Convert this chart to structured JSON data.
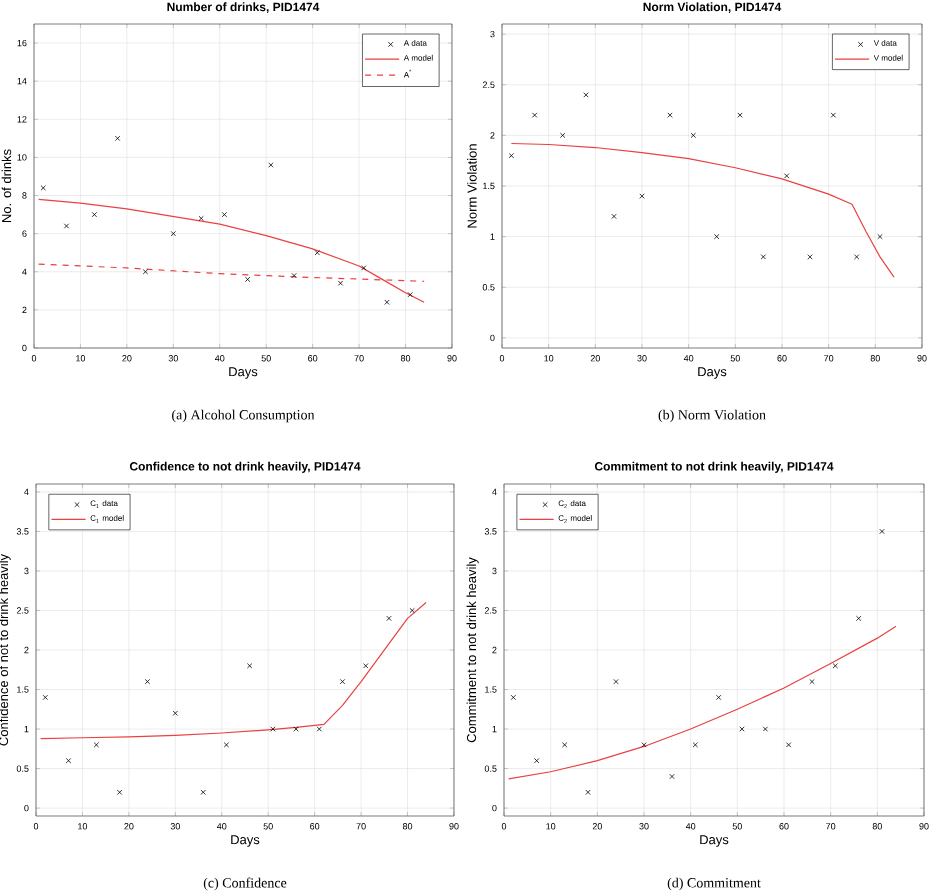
{
  "chart_data": [
    {
      "type": "scatter",
      "title": "Number of drinks, PID1474",
      "xlabel": "Days",
      "ylabel": "No. of drinks",
      "xlim": [
        0,
        90
      ],
      "xticks": [
        0,
        10,
        20,
        30,
        40,
        50,
        60,
        70,
        80,
        90
      ],
      "ylim": [
        0,
        17
      ],
      "yticks": [
        0,
        2,
        4,
        6,
        8,
        10,
        12,
        14,
        16
      ],
      "grid": true,
      "legend": "top right",
      "annotations": [
        "(a) Alcohol Consumption"
      ],
      "series": [
        {
          "name": "A data",
          "type": "scatter",
          "marker": "cross",
          "color": "#000000",
          "x": [
            2,
            7,
            13,
            18,
            24,
            30,
            36,
            41,
            46,
            51,
            56,
            61,
            66,
            71,
            76,
            81
          ],
          "values": [
            8.4,
            6.4,
            7.0,
            11.0,
            4.0,
            6.0,
            6.8,
            7.0,
            3.6,
            9.6,
            3.8,
            5.0,
            3.4,
            4.2,
            2.4,
            2.8
          ]
        },
        {
          "name": "A model",
          "type": "line",
          "line_style": "solid",
          "color": "#e8413f",
          "x": [
            1,
            10,
            20,
            30,
            40,
            50,
            60,
            70,
            75,
            80,
            84
          ],
          "values": [
            7.8,
            7.6,
            7.3,
            6.9,
            6.5,
            5.9,
            5.2,
            4.3,
            3.6,
            2.9,
            2.4
          ]
        },
        {
          "name": "A$^{*}$",
          "type": "line",
          "line_style": "dashed",
          "color": "#e8413f",
          "x": [
            1,
            20,
            40,
            60,
            84
          ],
          "values": [
            4.4,
            4.2,
            3.9,
            3.7,
            3.5
          ]
        }
      ]
    },
    {
      "type": "scatter",
      "title": "Norm Violation, PID1474",
      "xlabel": "Days",
      "ylabel": "Norm Violation",
      "xlim": [
        0,
        90
      ],
      "xticks": [
        0,
        10,
        20,
        30,
        40,
        50,
        60,
        70,
        80,
        90
      ],
      "ylim": [
        -0.1,
        3.1
      ],
      "yticks": [
        0,
        0.5,
        1,
        1.5,
        2,
        2.5,
        3
      ],
      "grid": true,
      "legend": "top right",
      "annotations": [
        "(b) Norm Violation"
      ],
      "series": [
        {
          "name": "V data",
          "type": "scatter",
          "marker": "cross",
          "color": "#000000",
          "x": [
            2,
            7,
            13,
            18,
            24,
            30,
            36,
            41,
            46,
            51,
            56,
            61,
            66,
            71,
            76,
            81
          ],
          "values": [
            1.8,
            2.2,
            2.0,
            2.4,
            1.2,
            1.4,
            2.2,
            2.0,
            1.0,
            2.2,
            0.8,
            1.6,
            0.8,
            2.2,
            0.8,
            1.0
          ]
        },
        {
          "name": "V model",
          "type": "line",
          "line_style": "solid",
          "color": "#e8413f",
          "x": [
            2,
            10,
            20,
            30,
            40,
            50,
            60,
            70,
            75,
            78,
            81,
            84
          ],
          "values": [
            1.92,
            1.91,
            1.88,
            1.83,
            1.77,
            1.68,
            1.57,
            1.42,
            1.32,
            1.05,
            0.8,
            0.6
          ]
        }
      ]
    },
    {
      "type": "scatter",
      "title": "Confidence to not drink heavily, PID1474",
      "xlabel": "Days",
      "ylabel": "Confidence of not to drink heavily",
      "xlim": [
        0,
        90
      ],
      "xticks": [
        0,
        10,
        20,
        30,
        40,
        50,
        60,
        70,
        80,
        90
      ],
      "ylim": [
        -0.1,
        4.1
      ],
      "yticks": [
        0,
        0.5,
        1,
        1.5,
        2,
        2.5,
        3,
        3.5,
        4
      ],
      "grid": true,
      "legend": "top left",
      "annotations": [
        "(c) Confidence"
      ],
      "series": [
        {
          "name": "C$_{1}$ data",
          "type": "scatter",
          "marker": "cross",
          "color": "#000000",
          "x": [
            2,
            7,
            13,
            18,
            24,
            30,
            36,
            41,
            46,
            51,
            56,
            61,
            66,
            71,
            76,
            81
          ],
          "values": [
            1.4,
            0.6,
            0.8,
            0.2,
            1.6,
            1.2,
            0.2,
            0.8,
            1.8,
            1.0,
            1.0,
            1.0,
            1.6,
            1.8,
            2.4,
            2.5
          ]
        },
        {
          "name": "C$_{1}$ model",
          "type": "line",
          "line_style": "solid",
          "color": "#e8413f",
          "x": [
            1,
            10,
            20,
            30,
            40,
            50,
            56,
            62,
            66,
            70,
            75,
            80,
            84
          ],
          "values": [
            0.88,
            0.89,
            0.9,
            0.92,
            0.95,
            0.99,
            1.02,
            1.06,
            1.3,
            1.6,
            2.0,
            2.4,
            2.6
          ]
        }
      ]
    },
    {
      "type": "scatter",
      "title": "Commitment to not drink heavily, PID1474",
      "xlabel": "Days",
      "ylabel": "Commitment to not drink heavily",
      "xlim": [
        0,
        90
      ],
      "xticks": [
        0,
        10,
        20,
        30,
        40,
        50,
        60,
        70,
        80,
        90
      ],
      "ylim": [
        -0.1,
        4.1
      ],
      "yticks": [
        0,
        0.5,
        1,
        1.5,
        2,
        2.5,
        3,
        3.5,
        4
      ],
      "grid": true,
      "legend": "top left",
      "annotations": [
        "(d) Commitment"
      ],
      "series": [
        {
          "name": "C$_{2}$ data",
          "type": "scatter",
          "marker": "cross",
          "color": "#000000",
          "x": [
            2,
            7,
            13,
            18,
            24,
            30,
            36,
            41,
            46,
            51,
            56,
            61,
            66,
            71,
            76,
            81
          ],
          "values": [
            1.4,
            0.6,
            0.8,
            0.2,
            1.6,
            0.8,
            0.4,
            0.8,
            1.4,
            1.0,
            1.0,
            0.8,
            1.6,
            1.8,
            2.4,
            3.5
          ]
        },
        {
          "name": "C$_{2}$ model",
          "type": "line",
          "line_style": "solid",
          "color": "#e8413f",
          "x": [
            1,
            10,
            20,
            30,
            40,
            50,
            60,
            70,
            80,
            84
          ],
          "values": [
            0.37,
            0.46,
            0.6,
            0.78,
            1.0,
            1.25,
            1.52,
            1.83,
            2.15,
            2.3
          ]
        }
      ]
    }
  ]
}
